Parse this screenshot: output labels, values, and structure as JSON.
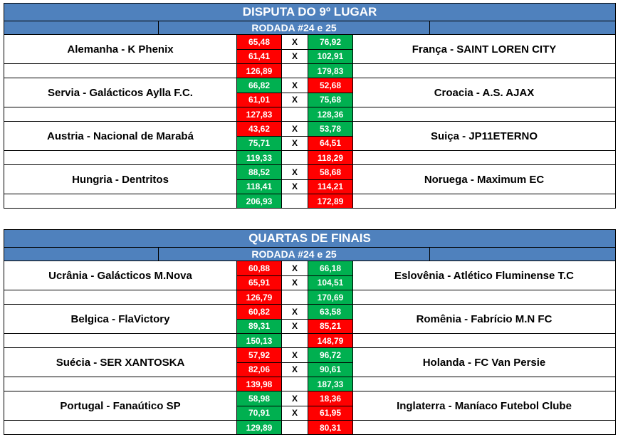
{
  "sections": [
    {
      "title": "DISPUTA DO 9º LUGAR",
      "subtitle": "RODADA #24 e 25",
      "matches": [
        {
          "left": "Alemanha - K Phenix",
          "right": "França - SAINT LOREN CITY",
          "r1": [
            "65,48",
            "76,92"
          ],
          "r2": [
            "61,41",
            "102,91"
          ],
          "tot": [
            "126,89",
            "179,83"
          ],
          "c1": [
            "red",
            "green"
          ],
          "c2": [
            "red",
            "green"
          ],
          "ct": [
            "red",
            "green"
          ]
        },
        {
          "left": "Servia - Galácticos Aylla F.C.",
          "right": "Croacia - A.S. AJAX",
          "r1": [
            "66,82",
            "52,68"
          ],
          "r2": [
            "61,01",
            "75,68"
          ],
          "tot": [
            "127,83",
            "128,36"
          ],
          "c1": [
            "green",
            "red"
          ],
          "c2": [
            "red",
            "green"
          ],
          "ct": [
            "red",
            "green"
          ]
        },
        {
          "left": "Austria - Nacional de Marabá",
          "right": "Suiça - JP11ETERNO",
          "r1": [
            "43,62",
            "53,78"
          ],
          "r2": [
            "75,71",
            "64,51"
          ],
          "tot": [
            "119,33",
            "118,29"
          ],
          "c1": [
            "red",
            "green"
          ],
          "c2": [
            "green",
            "red"
          ],
          "ct": [
            "green",
            "red"
          ]
        },
        {
          "left": "Hungria - Dentritos",
          "right": "Noruega - Maximum EC",
          "r1": [
            "88,52",
            "58,68"
          ],
          "r2": [
            "118,41",
            "114,21"
          ],
          "tot": [
            "206,93",
            "172,89"
          ],
          "c1": [
            "green",
            "red"
          ],
          "c2": [
            "green",
            "red"
          ],
          "ct": [
            "green",
            "red"
          ]
        }
      ]
    },
    {
      "title": "QUARTAS DE FINAIS",
      "subtitle": "RODADA #24 e 25",
      "matches": [
        {
          "left": "Ucrânia - Galácticos M.Nova",
          "right": "Eslovênia - Atlético Fluminense T.C",
          "r1": [
            "60,88",
            "66,18"
          ],
          "r2": [
            "65,91",
            "104,51"
          ],
          "tot": [
            "126,79",
            "170,69"
          ],
          "c1": [
            "red",
            "green"
          ],
          "c2": [
            "red",
            "green"
          ],
          "ct": [
            "red",
            "green"
          ]
        },
        {
          "left": "Belgica - FlaVictory",
          "right": "Romênia - Fabrício M.N FC",
          "r1": [
            "60,82",
            "63,58"
          ],
          "r2": [
            "89,31",
            "85,21"
          ],
          "tot": [
            "150,13",
            "148,79"
          ],
          "c1": [
            "red",
            "green"
          ],
          "c2": [
            "green",
            "red"
          ],
          "ct": [
            "green",
            "red"
          ]
        },
        {
          "left": "Suécia - SER XANTOSKA",
          "right": "Holanda - FC Van Persie",
          "r1": [
            "57,92",
            "96,72"
          ],
          "r2": [
            "82,06",
            "90,61"
          ],
          "tot": [
            "139,98",
            "187,33"
          ],
          "c1": [
            "red",
            "green"
          ],
          "c2": [
            "red",
            "green"
          ],
          "ct": [
            "red",
            "green"
          ]
        },
        {
          "left": "Portugal - Fanaútico SP",
          "right": "Inglaterra - Maníaco Futebol Clube",
          "r1": [
            "58,98",
            "18,36"
          ],
          "r2": [
            "70,91",
            "61,95"
          ],
          "tot": [
            "129,89",
            "80,31"
          ],
          "c1": [
            "green",
            "red"
          ],
          "c2": [
            "green",
            "red"
          ],
          "ct": [
            "green",
            "red"
          ]
        }
      ]
    }
  ],
  "vs_label": "X",
  "colors": {
    "header": "#4f81bd",
    "win": "#00b050",
    "lose": "#ff0000"
  }
}
